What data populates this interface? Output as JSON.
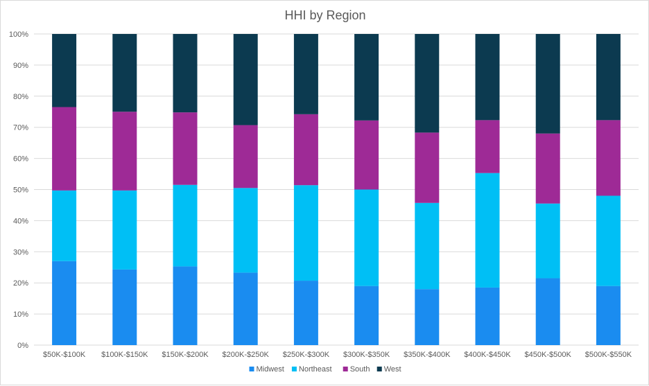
{
  "chart_data": {
    "type": "bar",
    "stacked": true,
    "percent_stacked": true,
    "title": "HHI by Region",
    "categories": [
      "$50K-$100K",
      "$100K-$150K",
      "$150K-$200K",
      "$200K-$250K",
      "$250K-$300K",
      "$300K-$350K",
      "$350K-$400K",
      "$400K-$450K",
      "$450K-$500K",
      "$500K-$550K"
    ],
    "y_ticks": [
      "0%",
      "10%",
      "20%",
      "30%",
      "40%",
      "50%",
      "60%",
      "70%",
      "80%",
      "90%",
      "100%"
    ],
    "ylim": [
      0,
      1
    ],
    "grid": true,
    "legend_position": "bottom",
    "series": [
      {
        "name": "Midwest",
        "color": "#1a8cf0",
        "values": [
          0.27,
          0.243,
          0.253,
          0.233,
          0.207,
          0.19,
          0.18,
          0.185,
          0.215,
          0.19
        ]
      },
      {
        "name": "Northeast",
        "color": "#00bff5",
        "values": [
          0.227,
          0.254,
          0.262,
          0.272,
          0.307,
          0.31,
          0.277,
          0.368,
          0.24,
          0.29
        ]
      },
      {
        "name": "South",
        "color": "#9e2a96",
        "values": [
          0.268,
          0.253,
          0.233,
          0.202,
          0.228,
          0.222,
          0.226,
          0.17,
          0.225,
          0.243
        ]
      },
      {
        "name": "West",
        "color": "#0c3a50",
        "values": [
          0.235,
          0.25,
          0.252,
          0.293,
          0.258,
          0.278,
          0.317,
          0.277,
          0.32,
          0.277
        ]
      }
    ]
  }
}
